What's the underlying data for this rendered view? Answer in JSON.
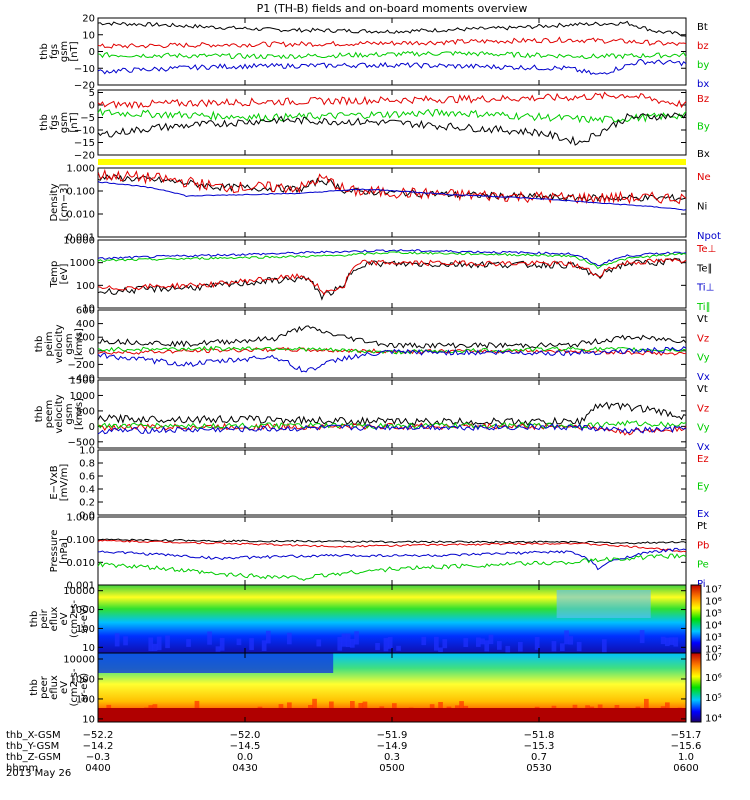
{
  "title": "P1 (TH-B) fields and on-board moments overview",
  "panels": [
    {
      "id": "fgs_btot",
      "ylabel": [
        "thb",
        "fgs",
        "gsm",
        "[nT]"
      ],
      "ticks": [
        "20",
        "10",
        "0",
        "−10",
        "−20"
      ],
      "tickVals": [
        20,
        10,
        0,
        -10,
        -20
      ],
      "ylim": [
        -20,
        20
      ],
      "legend": [
        {
          "name": "Bt",
          "color": "#000000"
        },
        {
          "name": "bz",
          "color": "#e00000"
        },
        {
          "name": "by",
          "color": "#00cc00"
        },
        {
          "name": "bx",
          "color": "#0000cc"
        }
      ]
    },
    {
      "id": "fgs_b",
      "ylabel": [
        "thb",
        "fgs",
        "gsm",
        "[nT]"
      ],
      "ticks": [
        "5",
        "0",
        "−5",
        "−10",
        "−15",
        "−20"
      ],
      "tickVals": [
        5,
        0,
        -5,
        -10,
        -15,
        -20
      ],
      "ylim": [
        -20,
        6
      ],
      "legend": [
        {
          "name": "Bz",
          "color": "#e00000"
        },
        {
          "name": "By",
          "color": "#00cc00"
        },
        {
          "name": "Bx",
          "color": "#000000"
        }
      ]
    },
    {
      "id": "density",
      "ylabel": [
        "Density",
        "[cm−3]"
      ],
      "ticks": [
        "1.000",
        "0.100",
        "0.010",
        "0.001"
      ],
      "tickVals": [
        1,
        0.1,
        0.01,
        0.001
      ],
      "ylim": [
        0.001,
        1
      ],
      "log": true,
      "legend": [
        {
          "name": "Ne",
          "color": "#e00000"
        },
        {
          "name": "Ni",
          "color": "#000000"
        },
        {
          "name": "Npot",
          "color": "#0000cc"
        }
      ]
    },
    {
      "id": "temp",
      "ylabel": [
        "Temp",
        "[eV]"
      ],
      "ticks": [
        "10000",
        "1000",
        "100",
        "10"
      ],
      "tickVals": [
        10000,
        1000,
        100,
        10
      ],
      "ylim": [
        10,
        10000
      ],
      "log": true,
      "legend": [
        {
          "name": "Te⊥",
          "color": "#e00000"
        },
        {
          "name": "Te∥",
          "color": "#000000"
        },
        {
          "name": "Ti⊥",
          "color": "#0000cc"
        },
        {
          "name": "Ti∥",
          "color": "#00cc00"
        }
      ]
    },
    {
      "id": "peim",
      "ylabel": [
        "thb",
        "peim",
        "velocity",
        "gsm",
        "[km/s]"
      ],
      "ticks": [
        "600",
        "400",
        "200",
        "0",
        "−200",
        "−400"
      ],
      "tickVals": [
        600,
        400,
        200,
        0,
        -200,
        -400
      ],
      "ylim": [
        -400,
        600
      ],
      "legend": [
        {
          "name": "Vt",
          "color": "#000000"
        },
        {
          "name": "Vz",
          "color": "#e00000"
        },
        {
          "name": "Vy",
          "color": "#00cc00"
        },
        {
          "name": "Vx",
          "color": "#0000cc"
        }
      ]
    },
    {
      "id": "peem",
      "ylabel": [
        "thb",
        "peem",
        "velocity",
        "gsm",
        "[km/s]"
      ],
      "ticks": [
        "1500",
        "1000",
        "500",
        "0",
        "−500"
      ],
      "tickVals": [
        1500,
        1000,
        500,
        0,
        -500
      ],
      "ylim": [
        -700,
        1500
      ],
      "legend": [
        {
          "name": "Vt",
          "color": "#000000"
        },
        {
          "name": "Vz",
          "color": "#e00000"
        },
        {
          "name": "Vy",
          "color": "#00cc00"
        },
        {
          "name": "Vx",
          "color": "#0000cc"
        }
      ]
    },
    {
      "id": "efield",
      "ylabel": [
        "E−VxB",
        "[mV/m]"
      ],
      "ticks": [
        "1.0",
        "0.8",
        "0.6",
        "0.4",
        "0.2",
        "0.0"
      ],
      "tickVals": [
        1,
        0.8,
        0.6,
        0.4,
        0.2,
        0
      ],
      "ylim": [
        0,
        1
      ],
      "legend": [
        {
          "name": "Ez",
          "color": "#e00000"
        },
        {
          "name": "Ey",
          "color": "#00cc00"
        },
        {
          "name": "Ex",
          "color": "#0000cc"
        }
      ]
    },
    {
      "id": "pressure",
      "ylabel": [
        "Pressure",
        "[nPa]"
      ],
      "ticks": [
        "1.000",
        "0.100",
        "0.010",
        "0.001"
      ],
      "tickVals": [
        1,
        0.1,
        0.01,
        0.001
      ],
      "ylim": [
        0.001,
        1
      ],
      "log": true,
      "legend": [
        {
          "name": "Pt",
          "color": "#000000"
        },
        {
          "name": "Pb",
          "color": "#e00000"
        },
        {
          "name": "Pe",
          "color": "#00cc00"
        },
        {
          "name": "Pi",
          "color": "#0000cc"
        }
      ]
    },
    {
      "id": "peir",
      "ylabel": [
        "thb",
        "peir",
        "eflux",
        "eV",
        "(cm2-s-",
        "sr-eV)"
      ],
      "ticks": [
        "10000",
        "1000",
        "100",
        "10"
      ],
      "tickVals": [
        10000,
        1000,
        100,
        10
      ],
      "ylim": [
        5,
        20000
      ],
      "log": true,
      "legend": []
    },
    {
      "id": "peer",
      "ylabel": [
        "thb",
        "peer",
        "eflux",
        "eV",
        "(cm2-s-",
        "sr-eV)"
      ],
      "ticks": [
        "10000",
        "1000",
        "100",
        "10"
      ],
      "tickVals": [
        10000,
        1000,
        100,
        10
      ],
      "ylim": [
        7,
        20000
      ],
      "log": true,
      "legend": []
    }
  ],
  "colorbars": [
    {
      "labels": [
        "10⁷",
        "10⁶",
        "10⁵",
        "10⁴",
        "10³",
        "10²"
      ]
    },
    {
      "labels": [
        "10⁷",
        "10⁶",
        "10⁵",
        "10⁴"
      ]
    }
  ],
  "xaxis": {
    "times": [
      "0400",
      "0430",
      "0500",
      "0530",
      "0600"
    ],
    "rows": [
      {
        "name": "thb_X-GSM",
        "values": [
          "−52.2",
          "−52.0",
          "−51.9",
          "−51.8",
          "−51.7"
        ]
      },
      {
        "name": "thb_Y-GSM",
        "values": [
          "−14.2",
          "−14.5",
          "−14.9",
          "−15.3",
          "−15.6"
        ]
      },
      {
        "name": "thb_Z-GSM",
        "values": [
          "−0.3",
          "0.0",
          "0.3",
          "0.7",
          "1.0"
        ]
      },
      {
        "name": "hhmm",
        "values": [
          "0400",
          "0430",
          "0500",
          "0530",
          "0600"
        ]
      }
    ],
    "date": "2013 May 26"
  },
  "colors": {
    "black": "#000000",
    "red": "#e00000",
    "green": "#00cc00",
    "blue": "#0000cc",
    "flag": "#ffff00"
  },
  "chart_data": {
    "type": "line",
    "title": "P1 (TH-B) fields and on-board moments overview",
    "x": [
      "0400",
      "0430",
      "0500",
      "0530",
      "0600"
    ],
    "series": [
      {
        "name": "Bt",
        "values": [
          18,
          16,
          15,
          14,
          10
        ]
      },
      {
        "name": "bz",
        "values": [
          3,
          4,
          5,
          6,
          5
        ]
      },
      {
        "name": "by",
        "values": [
          -2,
          -3,
          -2,
          -3,
          -3
        ]
      },
      {
        "name": "bx",
        "values": [
          -12,
          -10,
          -10,
          -11,
          -7
        ]
      },
      {
        "name": "Ne",
        "values": [
          0.5,
          0.15,
          0.07,
          0.05,
          0.05
        ]
      },
      {
        "name": "Ni",
        "values": [
          0.4,
          0.12,
          0.06,
          0.04,
          0.05
        ]
      },
      {
        "name": "Npot",
        "values": [
          0.2,
          0.06,
          0.07,
          0.04,
          0.02
        ]
      },
      {
        "name": "Ti⊥",
        "values": [
          1500,
          2500,
          4000,
          3000,
          3000
        ]
      },
      {
        "name": "Ti∥",
        "values": [
          1200,
          2000,
          3000,
          2500,
          2500
        ]
      },
      {
        "name": "Te⊥",
        "values": [
          60,
          100,
          900,
          900,
          1300
        ]
      },
      {
        "name": "Te∥",
        "values": [
          50,
          80,
          800,
          800,
          1200
        ]
      },
      {
        "name": "Pt",
        "values": [
          0.1,
          0.09,
          0.08,
          0.07,
          0.08
        ]
      },
      {
        "name": "Pb",
        "values": [
          0.09,
          0.07,
          0.07,
          0.06,
          0.04
        ]
      },
      {
        "name": "Pe",
        "values": [
          0.01,
          0.004,
          0.006,
          0.01,
          0.02
        ]
      },
      {
        "name": "Pi",
        "values": [
          0.03,
          0.02,
          0.02,
          0.03,
          0.03
        ]
      }
    ]
  }
}
